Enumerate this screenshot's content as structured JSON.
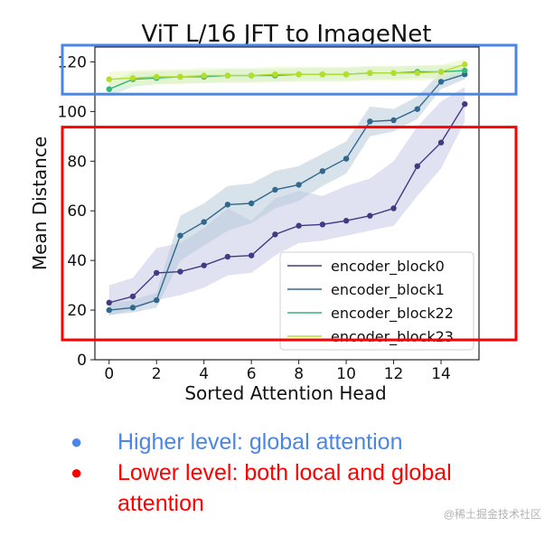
{
  "chart_data": {
    "type": "line",
    "title": "ViT L/16 JFT to ImageNet",
    "xlabel": "Sorted Attention Head",
    "ylabel": "Mean Distance",
    "xlim": [
      -0.6,
      15.6
    ],
    "ylim": [
      0,
      126
    ],
    "xticks": [
      0,
      2,
      4,
      6,
      8,
      10,
      12,
      14
    ],
    "yticks": [
      0,
      20,
      40,
      60,
      80,
      100,
      120
    ],
    "x": [
      0,
      1,
      2,
      3,
      4,
      5,
      6,
      7,
      8,
      9,
      10,
      11,
      12,
      13,
      14,
      15
    ],
    "legend_position": "lower-right",
    "series": [
      {
        "name": "encoder_block0",
        "color": "#443a83",
        "band_color": "#c6c9e6",
        "values": [
          23,
          25.5,
          35,
          35.5,
          38,
          41.5,
          42,
          50.5,
          54,
          54.5,
          56,
          58,
          61,
          78,
          87.5,
          103
        ],
        "band_low": [
          18,
          20,
          24,
          26,
          29,
          34,
          35,
          42,
          47,
          48,
          50,
          52,
          54,
          66,
          77,
          96
        ],
        "band_high": [
          30,
          33,
          45,
          47,
          53,
          61,
          56,
          65,
          68,
          66,
          70,
          73,
          80,
          94,
          104,
          110
        ]
      },
      {
        "name": "encoder_block1",
        "color": "#31688e",
        "band_color": "#b6cbd9",
        "values": [
          20,
          21,
          24,
          50,
          55.5,
          62.5,
          63,
          68.5,
          70.5,
          76,
          81,
          96,
          96.5,
          101,
          112,
          115
        ],
        "band_low": [
          18,
          19,
          21,
          40,
          46,
          52,
          55,
          61,
          64,
          70,
          75,
          90,
          92,
          97,
          109,
          113
        ],
        "band_high": [
          23,
          24,
          27,
          58,
          63,
          70,
          71,
          76,
          78,
          83,
          88,
          102,
          101,
          106,
          116,
          118
        ]
      },
      {
        "name": "encoder_block22",
        "color": "#35b779",
        "band_color": "#bfe5cf",
        "values": [
          109,
          113,
          113.5,
          114,
          114,
          114.5,
          114.5,
          114.5,
          115,
          115,
          115,
          115.5,
          115.5,
          116,
          116,
          116.5
        ],
        "band_low": [
          106,
          110,
          111,
          111.5,
          111.5,
          112,
          112,
          112,
          112.5,
          112.5,
          112.5,
          113,
          113,
          113.5,
          113.5,
          114
        ],
        "band_high": [
          112,
          116,
          116,
          116.5,
          116.5,
          117,
          117,
          117,
          117.5,
          117.5,
          117.5,
          118,
          118,
          118.5,
          118.5,
          119
        ]
      },
      {
        "name": "encoder_block23",
        "color": "#b5de2b",
        "band_color": "#e8f5c0",
        "values": [
          113,
          113.5,
          114,
          114,
          114.5,
          114.5,
          114.5,
          115,
          115,
          115,
          115,
          115.5,
          115.5,
          115.5,
          116,
          119
        ],
        "band_low": [
          110,
          110.5,
          111,
          111,
          111.5,
          111.5,
          111.5,
          112,
          112,
          112,
          112,
          112.5,
          112.5,
          112.5,
          113,
          117
        ],
        "band_high": [
          116,
          116.5,
          117,
          117,
          117.5,
          117.5,
          117.5,
          118,
          118,
          118,
          118,
          118.5,
          118.5,
          118.5,
          119,
          121
        ]
      }
    ],
    "annotations": [
      {
        "name": "higher-level-box",
        "color": "#4a86e8",
        "covers_y": [
          107,
          126
        ]
      },
      {
        "name": "lower-level-box",
        "color": "#ff0000",
        "covers_y": [
          8,
          93
        ]
      }
    ]
  },
  "bullets": [
    {
      "marker": "●",
      "text": "Higher level: global attention",
      "color": "#4a86e8"
    },
    {
      "marker": "●",
      "text": "Lower level: both local and global attention",
      "color": "#ff0000"
    }
  ],
  "watermark": "@稀土掘金技术社区"
}
